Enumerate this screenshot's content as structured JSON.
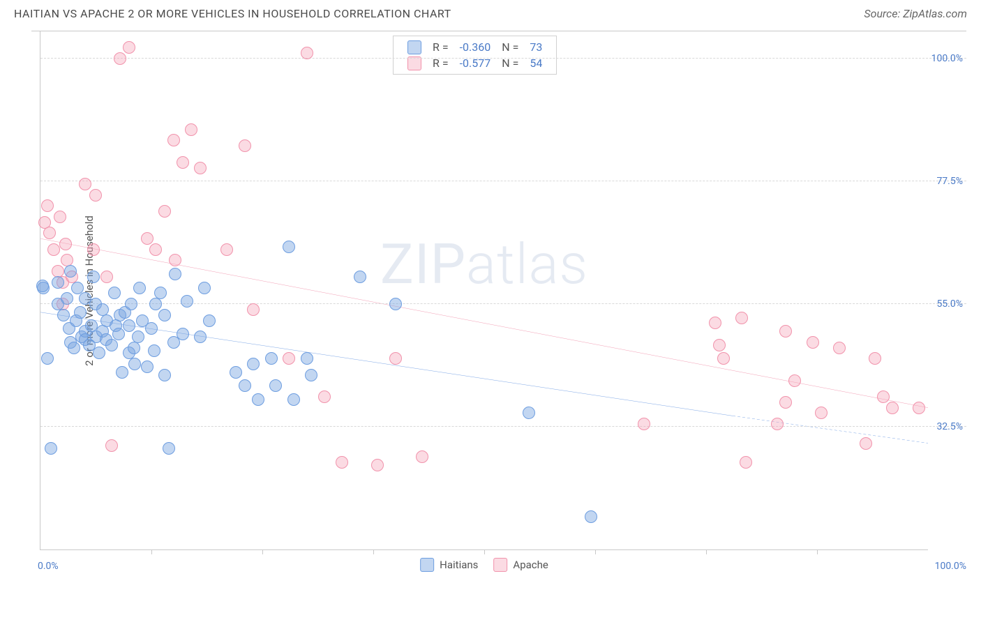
{
  "title": "HAITIAN VS APACHE 2 OR MORE VEHICLES IN HOUSEHOLD CORRELATION CHART",
  "title_fontsize": 16,
  "source_prefix": "Source: ",
  "source_name": "ZipAtlas.com",
  "watermark_a": "ZIP",
  "watermark_b": "atlas",
  "chart": {
    "type": "scatter",
    "ylabel": "2 or more Vehicles in Household",
    "ylabel_fontsize": 15,
    "xlim": [
      0,
      100
    ],
    "ylim": [
      10,
      105
    ],
    "x_min_label": "0.0%",
    "x_max_label": "100.0%",
    "yticks": [
      32.5,
      55.0,
      77.5,
      100.0
    ],
    "ytick_labels": [
      "32.5%",
      "55.0%",
      "77.5%",
      "100.0%"
    ],
    "xticks": [
      12.5,
      25,
      37.5,
      50,
      62.5,
      75,
      87.5
    ],
    "marker_radius": 9,
    "marker_stroke_width": 1.5,
    "line_width": 2.5,
    "background_color": "#ffffff",
    "grid_color": "#d8d8d8",
    "axis_color": "#c8c8c8"
  },
  "stats": {
    "r_label": "R =",
    "n_label": "N =",
    "rows": [
      {
        "color_key": "haitians",
        "r": "-0.360",
        "n": "73"
      },
      {
        "color_key": "apache",
        "r": "-0.577",
        "n": "54"
      }
    ]
  },
  "series": {
    "haitians": {
      "label": "Haitians",
      "fill": "rgba(120,165,225,0.45)",
      "stroke": "#6d9de0",
      "line_color": "#3b78d8",
      "regression": {
        "x1": 0,
        "y1": 53.5,
        "x2": 78,
        "y2": 34.5,
        "ext_x2": 100,
        "ext_y2": 29.5
      },
      "points": [
        [
          0.3,
          58
        ],
        [
          0.8,
          45
        ],
        [
          1.2,
          28.5
        ],
        [
          2,
          59
        ],
        [
          2,
          55
        ],
        [
          2.6,
          53
        ],
        [
          3,
          56
        ],
        [
          3.2,
          50.5
        ],
        [
          3.4,
          61
        ],
        [
          3.4,
          48
        ],
        [
          3.8,
          47
        ],
        [
          4,
          52
        ],
        [
          4.2,
          58
        ],
        [
          4.5,
          53.5
        ],
        [
          4.6,
          49
        ],
        [
          5,
          50
        ],
        [
          5,
          48.5
        ],
        [
          5,
          56
        ],
        [
          5.5,
          47.5
        ],
        [
          5.7,
          51
        ],
        [
          6,
          60
        ],
        [
          6.2,
          55
        ],
        [
          6.3,
          49
        ],
        [
          6.6,
          46
        ],
        [
          7,
          54
        ],
        [
          7,
          50
        ],
        [
          7.4,
          48.5
        ],
        [
          7.5,
          52
        ],
        [
          8,
          47.5
        ],
        [
          8.3,
          57
        ],
        [
          8.5,
          51
        ],
        [
          8.8,
          49.5
        ],
        [
          9,
          53
        ],
        [
          9.2,
          42.5
        ],
        [
          9.5,
          53.5
        ],
        [
          10,
          51
        ],
        [
          10,
          46
        ],
        [
          10.2,
          55
        ],
        [
          10.5,
          47
        ],
        [
          10.6,
          44
        ],
        [
          11,
          49
        ],
        [
          11.2,
          58
        ],
        [
          11.5,
          52
        ],
        [
          12,
          43.5
        ],
        [
          12.5,
          50.5
        ],
        [
          12.8,
          46.5
        ],
        [
          13,
          55
        ],
        [
          13.5,
          57
        ],
        [
          14,
          53
        ],
        [
          14,
          42
        ],
        [
          14.5,
          28.5
        ],
        [
          15,
          48
        ],
        [
          15.2,
          60.5
        ],
        [
          16,
          49.5
        ],
        [
          16.5,
          55.5
        ],
        [
          18,
          49
        ],
        [
          18.5,
          58
        ],
        [
          19,
          52
        ],
        [
          22,
          42.5
        ],
        [
          23,
          40
        ],
        [
          24,
          44
        ],
        [
          24.5,
          37.5
        ],
        [
          26,
          45
        ],
        [
          26.5,
          40
        ],
        [
          28,
          65.5
        ],
        [
          28.5,
          37.5
        ],
        [
          30,
          45
        ],
        [
          30.5,
          42
        ],
        [
          36,
          60
        ],
        [
          40,
          55
        ],
        [
          55,
          35
        ],
        [
          62,
          16
        ],
        [
          0.2,
          58.3
        ]
      ]
    },
    "apache": {
      "label": "Apache",
      "fill": "rgba(245,165,185,0.40)",
      "stroke": "#f192ab",
      "line_color": "#ec6e8e",
      "regression": {
        "x1": 0,
        "y1": 67,
        "x2": 100,
        "y2": 36
      },
      "points": [
        [
          0.5,
          70
        ],
        [
          0.8,
          73
        ],
        [
          1,
          68
        ],
        [
          1.5,
          65
        ],
        [
          2,
          61
        ],
        [
          2.2,
          71
        ],
        [
          2.5,
          59
        ],
        [
          2.8,
          66
        ],
        [
          3,
          63
        ],
        [
          3.5,
          60
        ],
        [
          2.5,
          55
        ],
        [
          5,
          77
        ],
        [
          6,
          65
        ],
        [
          6.2,
          75
        ],
        [
          7.5,
          60
        ],
        [
          8,
          29
        ],
        [
          9,
          100
        ],
        [
          10,
          102
        ],
        [
          12,
          67
        ],
        [
          13,
          65
        ],
        [
          14,
          72
        ],
        [
          15,
          85
        ],
        [
          15.2,
          63
        ],
        [
          16,
          81
        ],
        [
          17,
          87
        ],
        [
          18,
          80
        ],
        [
          21,
          65
        ],
        [
          23,
          84
        ],
        [
          24,
          54
        ],
        [
          28,
          45
        ],
        [
          30,
          101
        ],
        [
          32,
          38
        ],
        [
          34,
          26
        ],
        [
          38,
          25.5
        ],
        [
          40,
          45
        ],
        [
          43,
          27
        ],
        [
          68,
          33
        ],
        [
          76,
          51.5
        ],
        [
          76.5,
          47.5
        ],
        [
          79,
          52.5
        ],
        [
          79.5,
          26
        ],
        [
          83,
          33
        ],
        [
          84,
          50
        ],
        [
          85,
          41
        ],
        [
          87,
          48
        ],
        [
          88,
          35
        ],
        [
          90,
          47
        ],
        [
          93,
          29.5
        ],
        [
          94,
          45
        ],
        [
          95,
          38
        ],
        [
          96,
          36
        ],
        [
          99,
          36
        ],
        [
          77,
          45
        ],
        [
          84,
          37
        ]
      ]
    }
  },
  "legend_order": [
    "haitians",
    "apache"
  ]
}
